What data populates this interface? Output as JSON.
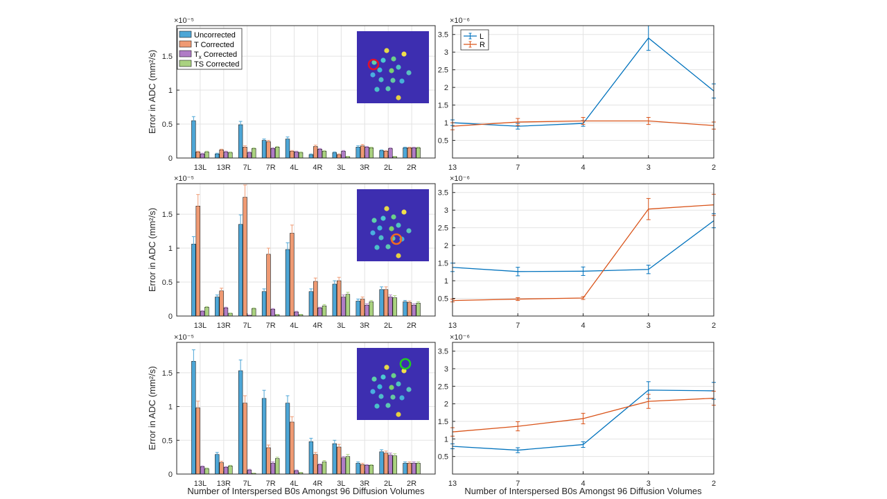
{
  "figure": {
    "xlabel": "Number of Interspersed B0s Amongst 96 Diffusion Volumes",
    "bar_ylabel": "Error in ADC (mm²/s)",
    "bar_exponent": "×10⁻⁵",
    "line_exponent": "×10⁻⁶",
    "colors": {
      "Uncorrected": "#4da6d6",
      "T Corrected": "#ef9a73",
      "Tx Corrected": "#b07cc6",
      "TS Corrected": "#aad280",
      "L": "#0072bd",
      "R": "#d95319",
      "inset_bg": "#3d2eb0",
      "marker_row1": "#e0102a",
      "marker_row2": "#f06a20",
      "marker_row3": "#22cc22"
    }
  },
  "chart_data": [
    {
      "type": "bar",
      "row": 1,
      "categories": [
        "13L",
        "13R",
        "7L",
        "7R",
        "4L",
        "4R",
        "3L",
        "3R",
        "2L",
        "2R"
      ],
      "ylabel": "Error in ADC (mm²/s)",
      "yscale_label": "×10⁻⁵",
      "ylim": [
        0,
        1.95
      ],
      "yticks": [
        0,
        0.5,
        1,
        1.5
      ],
      "legend_position": "top-left",
      "series": [
        {
          "name": "Uncorrected",
          "values": [
            0.55,
            0.06,
            0.49,
            0.26,
            0.28,
            0.05,
            0.08,
            0.16,
            0.11,
            0.15
          ],
          "errors": [
            0.06,
            0.01,
            0.05,
            0.02,
            0.03,
            0.01,
            0.01,
            0.02,
            0.01,
            0.01
          ]
        },
        {
          "name": "T Corrected",
          "values": [
            0.09,
            0.12,
            0.16,
            0.24,
            0.1,
            0.17,
            0.05,
            0.18,
            0.1,
            0.15
          ],
          "errors": [
            0.01,
            0.01,
            0.02,
            0.02,
            0.01,
            0.02,
            0.01,
            0.02,
            0.01,
            0.01
          ]
        },
        {
          "name": "Tx Corrected",
          "values": [
            0.06,
            0.09,
            0.08,
            0.14,
            0.09,
            0.13,
            0.1,
            0.16,
            0.14,
            0.15
          ],
          "errors": [
            0.01,
            0.01,
            0.01,
            0.01,
            0.01,
            0.01,
            0.01,
            0.01,
            0.01,
            0.01
          ]
        },
        {
          "name": "TS Corrected",
          "values": [
            0.09,
            0.08,
            0.14,
            0.16,
            0.08,
            0.1,
            0.02,
            0.15,
            0.02,
            0.15
          ],
          "errors": [
            0.01,
            0.01,
            0.01,
            0.01,
            0.01,
            0.01,
            0.005,
            0.01,
            0.005,
            0.01
          ]
        }
      ]
    },
    {
      "type": "line",
      "row": 1,
      "x": [
        13,
        7,
        4,
        3,
        2
      ],
      "ylim": [
        0,
        3.75
      ],
      "yticks": [
        0,
        0.5,
        1,
        1.5,
        2,
        2.5,
        3,
        3.5
      ],
      "yscale_label": "×10⁻⁶",
      "legend_position": "top-left",
      "series": [
        {
          "name": "L",
          "values": [
            1.0,
            0.9,
            0.98,
            3.4,
            1.9
          ],
          "errors": [
            0.08,
            0.08,
            0.08,
            0.35,
            0.2
          ]
        },
        {
          "name": "R",
          "values": [
            0.9,
            1.02,
            1.05,
            1.05,
            0.92
          ],
          "errors": [
            0.1,
            0.1,
            0.1,
            0.1,
            0.1
          ]
        }
      ]
    },
    {
      "type": "bar",
      "row": 2,
      "categories": [
        "13L",
        "13R",
        "7L",
        "7R",
        "4L",
        "4R",
        "3L",
        "3R",
        "2L",
        "2R"
      ],
      "ylabel": "Error in ADC (mm²/s)",
      "yscale_label": "×10⁻⁵",
      "ylim": [
        0,
        1.95
      ],
      "yticks": [
        0,
        0.5,
        1,
        1.5
      ],
      "series": [
        {
          "name": "Uncorrected",
          "values": [
            1.06,
            0.28,
            1.35,
            0.36,
            0.98,
            0.36,
            0.47,
            0.22,
            0.39,
            0.21
          ],
          "errors": [
            0.11,
            0.03,
            0.14,
            0.04,
            0.1,
            0.04,
            0.05,
            0.03,
            0.04,
            0.02
          ]
        },
        {
          "name": "T Corrected",
          "values": [
            1.62,
            0.37,
            1.75,
            0.91,
            1.22,
            0.51,
            0.52,
            0.25,
            0.39,
            0.2
          ],
          "errors": [
            0.17,
            0.04,
            0.18,
            0.09,
            0.12,
            0.05,
            0.05,
            0.03,
            0.04,
            0.02
          ]
        },
        {
          "name": "Tx Corrected",
          "values": [
            0.07,
            0.12,
            0.01,
            0.1,
            0.06,
            0.12,
            0.28,
            0.16,
            0.28,
            0.16
          ],
          "errors": [
            0.01,
            0.01,
            0.005,
            0.01,
            0.01,
            0.01,
            0.03,
            0.02,
            0.03,
            0.02
          ]
        },
        {
          "name": "TS Corrected",
          "values": [
            0.13,
            0.04,
            0.11,
            0.02,
            0.02,
            0.15,
            0.32,
            0.21,
            0.27,
            0.19
          ],
          "errors": [
            0.01,
            0.005,
            0.01,
            0.005,
            0.005,
            0.02,
            0.03,
            0.02,
            0.03,
            0.02
          ]
        }
      ]
    },
    {
      "type": "line",
      "row": 2,
      "x": [
        13,
        7,
        4,
        3,
        2
      ],
      "ylim": [
        0,
        3.75
      ],
      "yticks": [
        0,
        0.5,
        1,
        1.5,
        2,
        2.5,
        3,
        3.5
      ],
      "yscale_label": "×10⁻⁶",
      "series": [
        {
          "name": "L",
          "values": [
            1.38,
            1.26,
            1.27,
            1.32,
            2.7
          ],
          "errors": [
            0.12,
            0.12,
            0.12,
            0.12,
            0.2
          ]
        },
        {
          "name": "R",
          "values": [
            0.44,
            0.48,
            0.51,
            3.03,
            3.15
          ],
          "errors": [
            0.04,
            0.04,
            0.04,
            0.3,
            0.3
          ]
        }
      ]
    },
    {
      "type": "bar",
      "row": 3,
      "categories": [
        "13L",
        "13R",
        "7L",
        "7R",
        "4L",
        "4R",
        "3L",
        "3R",
        "2L",
        "2R"
      ],
      "ylabel": "Error in ADC (mm²/s)",
      "yscale_label": "×10⁻⁵",
      "ylim": [
        0,
        1.95
      ],
      "yticks": [
        0,
        0.5,
        1,
        1.5
      ],
      "series": [
        {
          "name": "Uncorrected",
          "values": [
            1.67,
            0.29,
            1.53,
            1.12,
            1.05,
            0.48,
            0.45,
            0.16,
            0.33,
            0.16
          ],
          "errors": [
            0.17,
            0.03,
            0.16,
            0.12,
            0.11,
            0.05,
            0.05,
            0.02,
            0.03,
            0.02
          ]
        },
        {
          "name": "T Corrected",
          "values": [
            0.98,
            0.17,
            1.05,
            0.39,
            0.77,
            0.29,
            0.4,
            0.14,
            0.31,
            0.16
          ],
          "errors": [
            0.1,
            0.02,
            0.11,
            0.04,
            0.08,
            0.03,
            0.04,
            0.02,
            0.03,
            0.02
          ]
        },
        {
          "name": "Tx Corrected",
          "values": [
            0.11,
            0.1,
            0.06,
            0.16,
            0.05,
            0.14,
            0.24,
            0.13,
            0.28,
            0.16
          ],
          "errors": [
            0.01,
            0.01,
            0.01,
            0.02,
            0.01,
            0.01,
            0.02,
            0.01,
            0.03,
            0.02
          ]
        },
        {
          "name": "TS Corrected",
          "values": [
            0.08,
            0.12,
            0.01,
            0.23,
            0.02,
            0.18,
            0.26,
            0.13,
            0.27,
            0.16
          ],
          "errors": [
            0.01,
            0.01,
            0.005,
            0.02,
            0.005,
            0.02,
            0.03,
            0.01,
            0.03,
            0.02
          ]
        }
      ]
    },
    {
      "type": "line",
      "row": 3,
      "x": [
        13,
        7,
        4,
        3,
        2
      ],
      "ylim": [
        0,
        3.75
      ],
      "yticks": [
        0,
        0.5,
        1,
        1.5,
        2,
        2.5,
        3,
        3.5
      ],
      "yscale_label": "×10⁻⁶",
      "series": [
        {
          "name": "L",
          "values": [
            0.79,
            0.68,
            0.84,
            2.39,
            2.37
          ],
          "errors": [
            0.07,
            0.07,
            0.08,
            0.24,
            0.24
          ]
        },
        {
          "name": "R",
          "values": [
            1.2,
            1.36,
            1.58,
            2.07,
            2.16
          ],
          "errors": [
            0.12,
            0.13,
            0.15,
            0.2,
            0.2
          ]
        }
      ]
    }
  ]
}
